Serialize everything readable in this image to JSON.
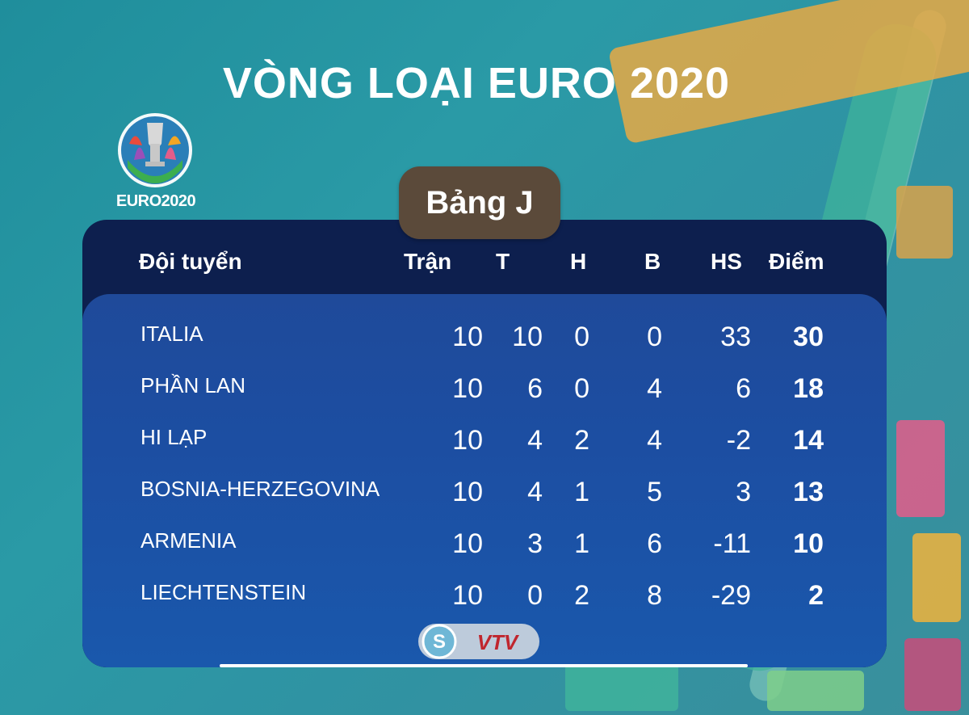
{
  "title": "VÒNG LOẠI EURO 2020",
  "logo_text": "EURO2020",
  "group": "Bảng J",
  "columns": [
    "Đội tuyển",
    "Trận",
    "T",
    "H",
    "B",
    "HS",
    "Điểm"
  ],
  "rows": [
    {
      "team": "ITALIA",
      "played": "10",
      "w": "10",
      "d": "0",
      "l": "0",
      "gd": "33",
      "pts": "30"
    },
    {
      "team": "PHẦN LAN",
      "played": "10",
      "w": "6",
      "d": "0",
      "l": "4",
      "gd": "6",
      "pts": "18"
    },
    {
      "team": "HI LẠP",
      "played": "10",
      "w": "4",
      "d": "2",
      "l": "4",
      "gd": "-2",
      "pts": "14"
    },
    {
      "team": "BOSNIA-HERZEGOVINA",
      "played": "10",
      "w": "4",
      "d": "1",
      "l": "5",
      "gd": "3",
      "pts": "13"
    },
    {
      "team": "ARMENIA",
      "played": "10",
      "w": "3",
      "d": "1",
      "l": "6",
      "gd": "-11",
      "pts": "10"
    },
    {
      "team": "LIECHTENSTEIN",
      "played": "10",
      "w": "0",
      "d": "2",
      "l": "8",
      "gd": "-29",
      "pts": "2"
    }
  ],
  "colors": {
    "header_bg": "#0d1f4e",
    "body_bg": "#1f4a9a",
    "tab_bg": "#5b4a3a",
    "accent_teal": "#2a9aa6"
  },
  "broadcaster": "VTV"
}
